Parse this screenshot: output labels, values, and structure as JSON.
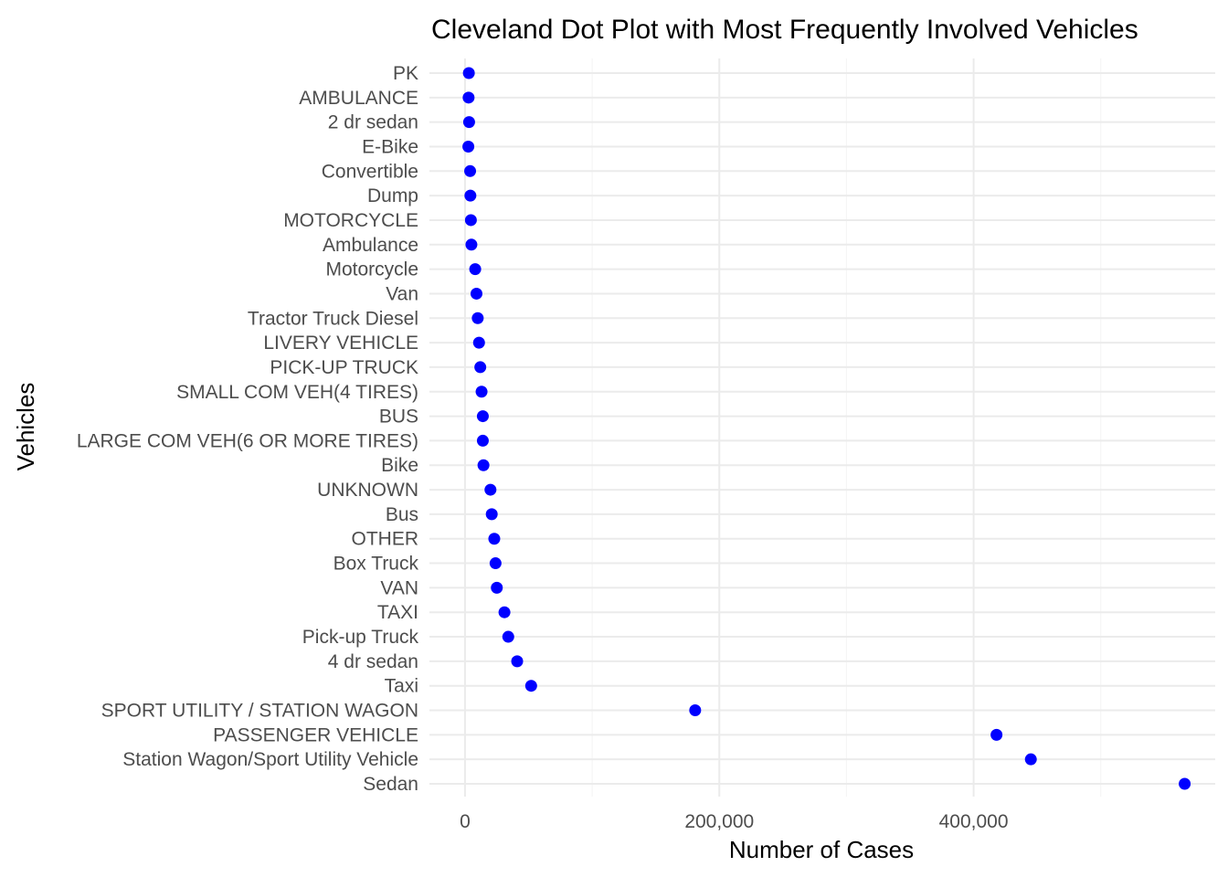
{
  "chart_data": {
    "type": "scatter",
    "title": "Cleveland Dot Plot with Most Frequently Involved Vehicles",
    "xlabel": "Number of Cases",
    "ylabel": "Vehicles",
    "xlim": [
      -28000,
      590000
    ],
    "xticks": [
      0,
      200000,
      400000
    ],
    "xtick_labels": [
      "0",
      "200,000",
      "400,000"
    ],
    "grid": true,
    "legend": "none",
    "point_color": "#0000ff",
    "categories": [
      "PK",
      "AMBULANCE",
      "2 dr sedan",
      "E-Bike",
      "Convertible",
      "Dump",
      "MOTORCYCLE",
      "Ambulance",
      "Motorcycle",
      "Van",
      "Tractor Truck Diesel",
      "LIVERY VEHICLE",
      "PICK-UP TRUCK",
      "SMALL COM VEH(4 TIRES) ",
      "BUS",
      "LARGE COM VEH(6 OR MORE TIRES)",
      "Bike",
      "UNKNOWN",
      "Bus",
      "OTHER",
      "Box Truck",
      "VAN",
      "TAXI",
      "Pick-up Truck",
      "4 dr sedan",
      "Taxi",
      "SPORT UTILITY / STATION WAGON",
      "PASSENGER VEHICLE",
      "Station Wagon/Sport Utility Vehicle",
      "Sedan"
    ],
    "values": [
      3000,
      2800,
      3200,
      2600,
      4000,
      4200,
      4600,
      5000,
      8000,
      9000,
      10000,
      11000,
      12000,
      13000,
      14000,
      14000,
      14500,
      20000,
      21000,
      23000,
      24000,
      25000,
      31000,
      34000,
      41000,
      52000,
      181000,
      418000,
      445000,
      566000
    ]
  }
}
